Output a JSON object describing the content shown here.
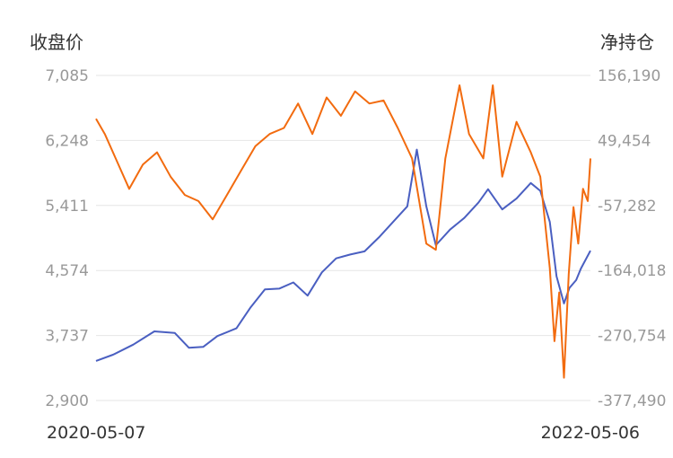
{
  "chart_data": {
    "type": "line",
    "y_left_label": "收盘价",
    "y_right_label": "净持仓",
    "x_start_label": "2020-05-07",
    "x_end_label": "2022-05-06",
    "y_left_ticks": [
      "7,085",
      "6,248",
      "5,411",
      "4,574",
      "3,737",
      "2,900"
    ],
    "y_right_ticks": [
      "156,190",
      "49,454",
      "-57,282",
      "-164,018",
      "-270,754",
      "-377,490"
    ],
    "y_left_range": [
      2900,
      7085
    ],
    "y_right_range": [
      -377490,
      156190
    ],
    "grid": true,
    "series": [
      {
        "axis": "left",
        "color": "#4a5fc1",
        "points": [
          {
            "x": "2020-05-07",
            "y": 3410
          },
          {
            "x": "2020-06-01",
            "y": 3490
          },
          {
            "x": "2020-07-01",
            "y": 3620
          },
          {
            "x": "2020-08-01",
            "y": 3790
          },
          {
            "x": "2020-08-31",
            "y": 3770
          },
          {
            "x": "2020-09-21",
            "y": 3580
          },
          {
            "x": "2020-10-12",
            "y": 3590
          },
          {
            "x": "2020-11-02",
            "y": 3730
          },
          {
            "x": "2020-11-30",
            "y": 3830
          },
          {
            "x": "2020-12-21",
            "y": 4100
          },
          {
            "x": "2021-01-11",
            "y": 4330
          },
          {
            "x": "2021-02-01",
            "y": 4340
          },
          {
            "x": "2021-02-22",
            "y": 4420
          },
          {
            "x": "2021-03-15",
            "y": 4250
          },
          {
            "x": "2021-04-05",
            "y": 4550
          },
          {
            "x": "2021-04-26",
            "y": 4730
          },
          {
            "x": "2021-05-17",
            "y": 4780
          },
          {
            "x": "2021-06-07",
            "y": 4820
          },
          {
            "x": "2021-06-28",
            "y": 5000
          },
          {
            "x": "2021-07-19",
            "y": 5200
          },
          {
            "x": "2021-08-09",
            "y": 5400
          },
          {
            "x": "2021-08-23",
            "y": 6130
          },
          {
            "x": "2021-09-06",
            "y": 5400
          },
          {
            "x": "2021-09-20",
            "y": 4900
          },
          {
            "x": "2021-10-11",
            "y": 5100
          },
          {
            "x": "2021-11-01",
            "y": 5250
          },
          {
            "x": "2021-11-22",
            "y": 5450
          },
          {
            "x": "2021-12-06",
            "y": 5620
          },
          {
            "x": "2021-12-27",
            "y": 5360
          },
          {
            "x": "2022-01-17",
            "y": 5500
          },
          {
            "x": "2022-02-07",
            "y": 5700
          },
          {
            "x": "2022-02-21",
            "y": 5600
          },
          {
            "x": "2022-03-07",
            "y": 5200
          },
          {
            "x": "2022-03-17",
            "y": 4500
          },
          {
            "x": "2022-03-28",
            "y": 4150
          },
          {
            "x": "2022-04-05",
            "y": 4350
          },
          {
            "x": "2022-04-15",
            "y": 4450
          },
          {
            "x": "2022-04-22",
            "y": 4600
          },
          {
            "x": "2022-05-06",
            "y": 4830
          }
        ]
      },
      {
        "axis": "right",
        "color": "#f26b0f",
        "points": [
          {
            "x": "2020-05-07",
            "y": 85000
          },
          {
            "x": "2020-05-20",
            "y": 60000
          },
          {
            "x": "2020-06-05",
            "y": 20000
          },
          {
            "x": "2020-06-25",
            "y": -30000
          },
          {
            "x": "2020-07-15",
            "y": 10000
          },
          {
            "x": "2020-08-05",
            "y": 30000
          },
          {
            "x": "2020-08-25",
            "y": -10000
          },
          {
            "x": "2020-09-15",
            "y": -40000
          },
          {
            "x": "2020-10-05",
            "y": -50000
          },
          {
            "x": "2020-10-26",
            "y": -80000
          },
          {
            "x": "2020-11-16",
            "y": -40000
          },
          {
            "x": "2020-12-07",
            "y": 0
          },
          {
            "x": "2020-12-28",
            "y": 40000
          },
          {
            "x": "2021-01-18",
            "y": 60000
          },
          {
            "x": "2021-02-08",
            "y": 70000
          },
          {
            "x": "2021-03-01",
            "y": 110000
          },
          {
            "x": "2021-03-22",
            "y": 60000
          },
          {
            "x": "2021-04-12",
            "y": 120000
          },
          {
            "x": "2021-05-03",
            "y": 90000
          },
          {
            "x": "2021-05-24",
            "y": 130000
          },
          {
            "x": "2021-06-14",
            "y": 110000
          },
          {
            "x": "2021-07-05",
            "y": 115000
          },
          {
            "x": "2021-07-26",
            "y": 70000
          },
          {
            "x": "2021-08-16",
            "y": 20000
          },
          {
            "x": "2021-09-06",
            "y": -120000
          },
          {
            "x": "2021-09-20",
            "y": -130000
          },
          {
            "x": "2021-10-04",
            "y": 20000
          },
          {
            "x": "2021-10-25",
            "y": 140000
          },
          {
            "x": "2021-11-08",
            "y": 60000
          },
          {
            "x": "2021-11-29",
            "y": 20000
          },
          {
            "x": "2021-12-13",
            "y": 140000
          },
          {
            "x": "2021-12-27",
            "y": -10000
          },
          {
            "x": "2022-01-17",
            "y": 80000
          },
          {
            "x": "2022-02-07",
            "y": 30000
          },
          {
            "x": "2022-02-21",
            "y": -10000
          },
          {
            "x": "2022-03-07",
            "y": -160000
          },
          {
            "x": "2022-03-14",
            "y": -280000
          },
          {
            "x": "2022-03-21",
            "y": -200000
          },
          {
            "x": "2022-03-28",
            "y": -340000
          },
          {
            "x": "2022-04-04",
            "y": -170000
          },
          {
            "x": "2022-04-11",
            "y": -60000
          },
          {
            "x": "2022-04-18",
            "y": -120000
          },
          {
            "x": "2022-04-25",
            "y": -30000
          },
          {
            "x": "2022-05-02",
            "y": -50000
          },
          {
            "x": "2022-05-06",
            "y": 20000
          }
        ]
      }
    ]
  }
}
